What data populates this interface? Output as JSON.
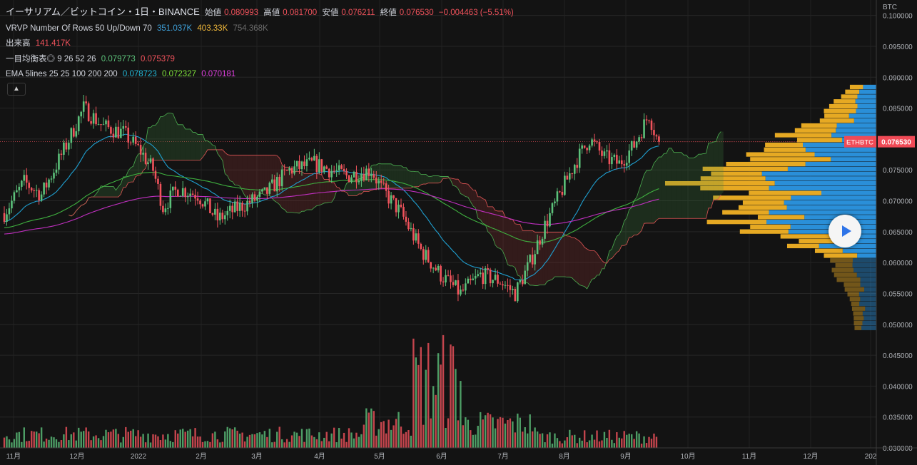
{
  "header": {
    "title": "イーサリアム／ビットコイン・1日・BINANCE",
    "ohlc": [
      {
        "label": "始値",
        "value": "0.080993"
      },
      {
        "label": "高値",
        "value": "0.081700"
      },
      {
        "label": "安値",
        "value": "0.076211"
      },
      {
        "label": "終値",
        "value": "0.076530"
      }
    ],
    "change": "−0.004463 (−5.51%)"
  },
  "indicators": {
    "vrvp": {
      "label": "VRVP Number Of Rows 50 Up/Down 70",
      "up": "351.037K",
      "down": "403.33K",
      "total": "754.368K"
    },
    "volume": {
      "label": "出来高",
      "value": "141.417K"
    },
    "ichimoku": {
      "label": "一目均衡表◎ 9 26 52 26",
      "v1": "0.079773",
      "v2": "0.075379"
    },
    "ema": {
      "label": "EMA 5lines 25 25 100 200 200",
      "v1": "0.078723",
      "v2": "0.072327",
      "v3": "0.070181"
    }
  },
  "collapse_icon": "chevron-up-icon",
  "play_icon": "play-icon",
  "price_tag": {
    "symbol": "ETHBTC",
    "value": "0.076530"
  },
  "axis_unit": "BTC",
  "colors": {
    "up": "#5cc17a",
    "down": "#f2535c",
    "vol_up": "#2a8fd8",
    "vol_down": "#e6a923",
    "ema1": "#1f9fd0",
    "ema2": "#3fb03f",
    "ema3": "#c12fc1"
  },
  "chart_data": {
    "type": "candlestick",
    "y_ticks": [
      "0.100000",
      "0.095000",
      "0.090000",
      "0.085000",
      "0.080000",
      "0.075000",
      "0.070000",
      "0.065000",
      "0.060000",
      "0.055000",
      "0.050000",
      "0.045000",
      "0.040000",
      "0.035000",
      "0.030000"
    ],
    "ylim": [
      0.03,
      0.1025
    ],
    "x_ticks": [
      "11月",
      "12月",
      "2022",
      "2月",
      "3月",
      "4月",
      "5月",
      "6月",
      "7月",
      "8月",
      "9月",
      "10月",
      "11月",
      "12月",
      "202"
    ],
    "trend_points": [
      [
        0,
        0.068
      ],
      [
        8,
        0.073
      ],
      [
        15,
        0.071
      ],
      [
        25,
        0.079
      ],
      [
        32,
        0.085
      ],
      [
        40,
        0.082
      ],
      [
        48,
        0.081
      ],
      [
        55,
        0.078
      ],
      [
        60,
        0.075
      ],
      [
        64,
        0.069
      ],
      [
        70,
        0.072
      ],
      [
        78,
        0.071
      ],
      [
        86,
        0.067
      ],
      [
        95,
        0.069
      ],
      [
        105,
        0.071
      ],
      [
        115,
        0.075
      ],
      [
        125,
        0.076
      ],
      [
        138,
        0.074
      ],
      [
        148,
        0.075
      ],
      [
        152,
        0.072
      ],
      [
        160,
        0.068
      ],
      [
        168,
        0.062
      ],
      [
        176,
        0.058
      ],
      [
        184,
        0.055
      ],
      [
        192,
        0.058
      ],
      [
        200,
        0.057
      ],
      [
        206,
        0.055
      ],
      [
        212,
        0.06
      ],
      [
        218,
        0.066
      ],
      [
        224,
        0.071
      ],
      [
        230,
        0.076
      ],
      [
        236,
        0.08
      ],
      [
        242,
        0.077
      ],
      [
        248,
        0.076
      ],
      [
        254,
        0.079
      ],
      [
        260,
        0.084
      ],
      [
        264,
        0.079
      ]
    ],
    "volume_ranges": [
      {
        "from": 0,
        "to": 145,
        "low": 0.5,
        "high": 2.0
      },
      {
        "from": 145,
        "to": 165,
        "low": 1.0,
        "high": 3.8
      },
      {
        "from": 165,
        "to": 185,
        "low": 1.5,
        "high": 11.0
      },
      {
        "from": 185,
        "to": 215,
        "low": 1.0,
        "high": 3.5
      },
      {
        "from": 215,
        "to": 264,
        "low": 0.4,
        "high": 1.7
      }
    ]
  }
}
